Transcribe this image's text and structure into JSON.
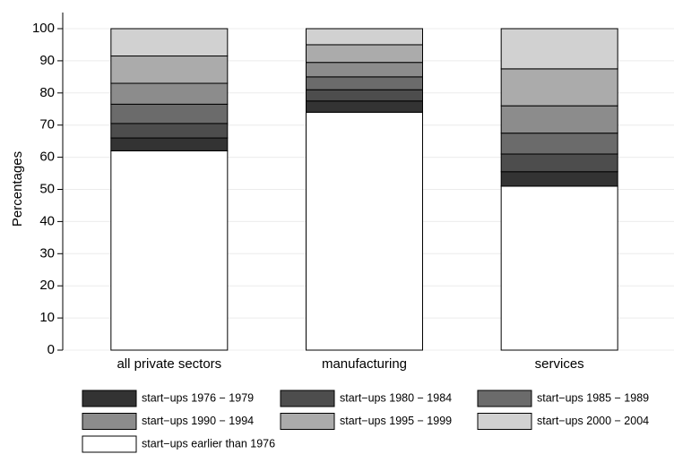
{
  "chart_data": {
    "type": "stacked_bar",
    "ylabel": "Percentages",
    "categories": [
      "all private sectors",
      "manufacturing",
      "services"
    ],
    "series": [
      {
        "name": "start−ups 1976 − 1979",
        "color": "#333333",
        "values": [
          4,
          3.5,
          4.5
        ]
      },
      {
        "name": "start−ups 1980 − 1984",
        "color": "#4d4d4d",
        "values": [
          4.5,
          3.5,
          5.5
        ]
      },
      {
        "name": "start−ups 1985 − 1989",
        "color": "#6b6b6b",
        "values": [
          6,
          4,
          6.5
        ]
      },
      {
        "name": "start−ups 1990 − 1994",
        "color": "#8c8c8c",
        "values": [
          6.5,
          4.5,
          8.5
        ]
      },
      {
        "name": "start−ups 1995 − 1999",
        "color": "#ababab",
        "values": [
          8.5,
          5.5,
          11.5
        ]
      },
      {
        "name": "start−ups 2000 − 2004",
        "color": "#d1d1d1",
        "values": [
          8.5,
          5,
          12.5
        ]
      },
      {
        "name": "start−ups earlier than 1976",
        "color": "#ffffff",
        "values": [
          62,
          74,
          51
        ]
      }
    ],
    "ylim": [
      0,
      100
    ],
    "yticks": [
      0,
      10,
      20,
      30,
      40,
      50,
      60,
      70,
      80,
      90,
      100
    ],
    "grid": true
  }
}
